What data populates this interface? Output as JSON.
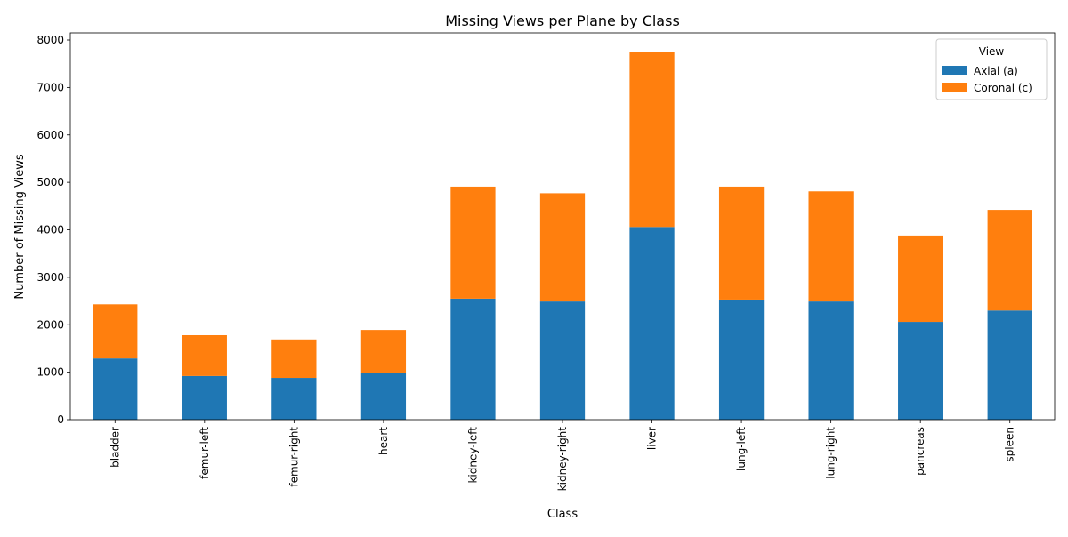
{
  "chart_data": {
    "type": "bar",
    "stacked": true,
    "title": "Missing Views per Plane by Class",
    "xlabel": "Class",
    "ylabel": "Number of Missing Views",
    "categories": [
      "bladder",
      "femur-left",
      "femur-right",
      "heart",
      "kidney-left",
      "kidney-right",
      "liver",
      "lung-left",
      "lung-right",
      "pancreas",
      "spleen"
    ],
    "series": [
      {
        "name": "Axial (a)",
        "color": "#1f77b4",
        "values": [
          1290,
          920,
          880,
          990,
          2550,
          2490,
          4060,
          2530,
          2490,
          2060,
          2300
        ]
      },
      {
        "name": "Coronal (c)",
        "color": "#ff7f0e",
        "values": [
          1140,
          860,
          810,
          900,
          2360,
          2280,
          3690,
          2380,
          2320,
          1820,
          2120
        ]
      }
    ],
    "ylim": [
      0,
      8150
    ],
    "yticks": [
      0,
      1000,
      2000,
      3000,
      4000,
      5000,
      6000,
      7000,
      8000
    ],
    "grid": false,
    "legend": {
      "title": "View",
      "position": "top-right"
    }
  }
}
